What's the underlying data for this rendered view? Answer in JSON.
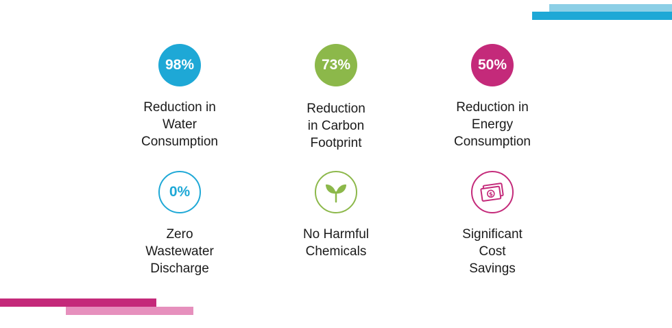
{
  "colors": {
    "blue": "#1ea8d6",
    "green": "#8cb84a",
    "magenta": "#c42a7a",
    "text": "#1a1a1a"
  },
  "stats": [
    {
      "value": "98%",
      "label_lines": [
        "Reduction in",
        "Water",
        "Consumption"
      ]
    },
    {
      "value": "73%",
      "label_lines": [
        "Reduction",
        "in Carbon",
        "Footprint"
      ]
    },
    {
      "value": "50%",
      "label_lines": [
        "Reduction in",
        "Energy",
        "Consumption"
      ]
    }
  ],
  "benefits": [
    {
      "value": "0%",
      "label_lines": [
        "Zero",
        "Wastewater",
        "Discharge"
      ]
    },
    {
      "icon": "leaf-sprout-icon",
      "label_lines": [
        "No Harmful",
        "Chemicals"
      ]
    },
    {
      "icon": "money-bill-icon",
      "label_lines": [
        "Significant",
        "Cost",
        "Savings"
      ]
    }
  ]
}
